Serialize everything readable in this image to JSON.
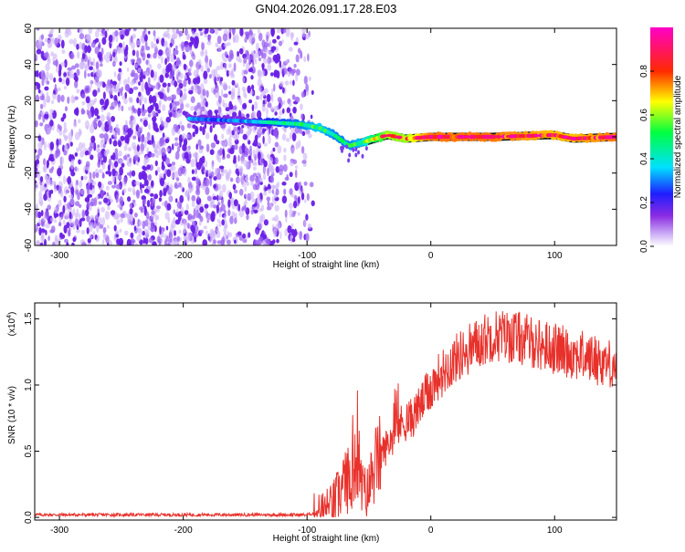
{
  "title": "GN04.2026.091.17.28.E03",
  "colors": {
    "snr_line": "#e8312b",
    "axis": "#000000",
    "noise": "#7a3cf0"
  },
  "chart_data": [
    {
      "type": "heatmap",
      "name": "spectrogram",
      "xlabel": "Height of straight line (km)",
      "ylabel": "Frequency (Hz)",
      "xlim": [
        -320,
        150
      ],
      "ylim": [
        -60,
        60
      ],
      "xticks": [
        -300,
        -200,
        -100,
        0,
        100
      ],
      "yticks": [
        -60,
        -40,
        -20,
        0,
        20,
        40,
        60
      ],
      "colorbar": {
        "label": "Normalized spectral amplitude",
        "range": [
          0,
          1
        ],
        "ticks": [
          0.0,
          0.2,
          0.4,
          0.6,
          0.8
        ],
        "tick_labels": [
          "0.0",
          "0.2",
          "0.4",
          "0.6",
          "0.8"
        ],
        "colormap": [
          "#ffffff",
          "#8a2be2",
          "#1e1eff",
          "#00e0ff",
          "#00ff40",
          "#ffff00",
          "#ff2a00",
          "#ff00c8"
        ]
      },
      "noise_region": {
        "x_from": -320,
        "x_to": -95
      },
      "signal_track": [
        {
          "x": -195,
          "freq": 10,
          "amp": 0.35
        },
        {
          "x": -160,
          "freq": 9,
          "amp": 0.3
        },
        {
          "x": -130,
          "freq": 8,
          "amp": 0.45
        },
        {
          "x": -105,
          "freq": 7,
          "amp": 0.5
        },
        {
          "x": -90,
          "freq": 5,
          "amp": 0.55
        },
        {
          "x": -78,
          "freq": 1,
          "amp": 0.5
        },
        {
          "x": -66,
          "freq": -5,
          "amp": 0.5
        },
        {
          "x": -55,
          "freq": -3,
          "amp": 0.55
        },
        {
          "x": -45,
          "freq": -1,
          "amp": 0.7
        },
        {
          "x": -35,
          "freq": 1,
          "amp": 0.8
        },
        {
          "x": -20,
          "freq": -1,
          "amp": 0.8
        },
        {
          "x": 0,
          "freq": 0,
          "amp": 0.95
        },
        {
          "x": 50,
          "freq": 0,
          "amp": 0.95
        },
        {
          "x": 100,
          "freq": 1,
          "amp": 0.9
        },
        {
          "x": 115,
          "freq": -1,
          "amp": 0.9
        },
        {
          "x": 150,
          "freq": 0,
          "amp": 0.95
        }
      ]
    },
    {
      "type": "line",
      "name": "snr",
      "xlabel": "Height of straight line (km)",
      "ylabel": "SNR (10 * v/v)",
      "scale_label": "(x10",
      "scale_exp": "4",
      "scale_close": ")",
      "xlim": [
        -320,
        150
      ],
      "ylim": [
        -0.02,
        1.62
      ],
      "xticks": [
        -300,
        -200,
        -100,
        0,
        100
      ],
      "yticks": [
        0.0,
        0.5,
        1.0,
        1.5
      ],
      "ytick_labels": [
        "0.0",
        "0.5",
        "1.0",
        "1.5"
      ],
      "envelope": [
        {
          "x": -320,
          "y": 0.02
        },
        {
          "x": -100,
          "y": 0.02
        },
        {
          "x": -90,
          "y": 0.04
        },
        {
          "x": -80,
          "y": 0.08
        },
        {
          "x": -70,
          "y": 0.25
        },
        {
          "x": -60,
          "y": 0.35
        },
        {
          "x": -52,
          "y": 0.15
        },
        {
          "x": -45,
          "y": 0.4
        },
        {
          "x": -35,
          "y": 0.55
        },
        {
          "x": -25,
          "y": 0.7
        },
        {
          "x": -15,
          "y": 0.75
        },
        {
          "x": -5,
          "y": 0.9
        },
        {
          "x": 5,
          "y": 1.05
        },
        {
          "x": 20,
          "y": 1.2
        },
        {
          "x": 35,
          "y": 1.3
        },
        {
          "x": 50,
          "y": 1.38
        },
        {
          "x": 70,
          "y": 1.36
        },
        {
          "x": 90,
          "y": 1.3
        },
        {
          "x": 110,
          "y": 1.25
        },
        {
          "x": 130,
          "y": 1.2
        },
        {
          "x": 150,
          "y": 1.15
        }
      ]
    }
  ]
}
